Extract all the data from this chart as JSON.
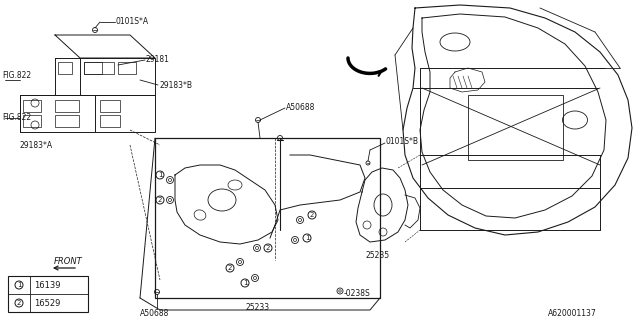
{
  "bg_color": "#ffffff",
  "line_color": "#1a1a1a",
  "fig_width": 6.4,
  "fig_height": 3.2,
  "dpi": 100,
  "labels": {
    "0101SA": "0101S*A",
    "29181": "29181",
    "29183B": "29183*B",
    "29183A": "29183*A",
    "FIG822_top": "FIG.822",
    "FIG822_bot": "FIG.822",
    "A50688_top": "A50688",
    "A50688_bot": "A50688",
    "0238S": "0238S",
    "25233": "25233",
    "0101SB": "0101S*B",
    "25235": "25235",
    "FRONT": "FRONT",
    "part_num": "A620001137"
  },
  "legend_items": [
    {
      "circle": "1",
      "label": "16139"
    },
    {
      "circle": "2",
      "label": "16529"
    }
  ]
}
